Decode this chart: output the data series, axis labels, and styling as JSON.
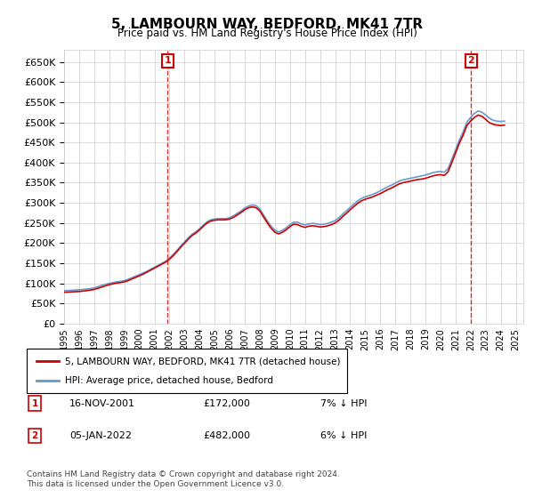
{
  "title": "5, LAMBOURN WAY, BEDFORD, MK41 7TR",
  "subtitle": "Price paid vs. HM Land Registry's House Price Index (HPI)",
  "ylabel_ticks": [
    0,
    50000,
    100000,
    150000,
    200000,
    250000,
    300000,
    350000,
    400000,
    450000,
    500000,
    550000,
    600000,
    650000
  ],
  "ylim": [
    0,
    680000
  ],
  "background_color": "#ffffff",
  "grid_color": "#cccccc",
  "hpi_color": "#6699cc",
  "price_color": "#cc0000",
  "marker1_date": "16-NOV-2001",
  "marker1_price": 172000,
  "marker1_hpi_pct": "7%",
  "marker2_date": "05-JAN-2022",
  "marker2_price": 482000,
  "marker2_hpi_pct": "6%",
  "legend_label_red": "5, LAMBOURN WAY, BEDFORD, MK41 7TR (detached house)",
  "legend_label_blue": "HPI: Average price, detached house, Bedford",
  "footer": "Contains HM Land Registry data © Crown copyright and database right 2024.\nThis data is licensed under the Open Government Licence v3.0.",
  "hpi_data": {
    "years": [
      1995.0,
      1995.25,
      1995.5,
      1995.75,
      1996.0,
      1996.25,
      1996.5,
      1996.75,
      1997.0,
      1997.25,
      1997.5,
      1997.75,
      1998.0,
      1998.25,
      1998.5,
      1998.75,
      1999.0,
      1999.25,
      1999.5,
      1999.75,
      2000.0,
      2000.25,
      2000.5,
      2000.75,
      2001.0,
      2001.25,
      2001.5,
      2001.75,
      2002.0,
      2002.25,
      2002.5,
      2002.75,
      2003.0,
      2003.25,
      2003.5,
      2003.75,
      2004.0,
      2004.25,
      2004.5,
      2004.75,
      2005.0,
      2005.25,
      2005.5,
      2005.75,
      2006.0,
      2006.25,
      2006.5,
      2006.75,
      2007.0,
      2007.25,
      2007.5,
      2007.75,
      2008.0,
      2008.25,
      2008.5,
      2008.75,
      2009.0,
      2009.25,
      2009.5,
      2009.75,
      2010.0,
      2010.25,
      2010.5,
      2010.75,
      2011.0,
      2011.25,
      2011.5,
      2011.75,
      2012.0,
      2012.25,
      2012.5,
      2012.75,
      2013.0,
      2013.25,
      2013.5,
      2013.75,
      2014.0,
      2014.25,
      2014.5,
      2014.75,
      2015.0,
      2015.25,
      2015.5,
      2015.75,
      2016.0,
      2016.25,
      2016.5,
      2016.75,
      2017.0,
      2017.25,
      2017.5,
      2017.75,
      2018.0,
      2018.25,
      2018.5,
      2018.75,
      2019.0,
      2019.25,
      2019.5,
      2019.75,
      2020.0,
      2020.25,
      2020.5,
      2020.75,
      2021.0,
      2021.25,
      2021.5,
      2021.75,
      2022.0,
      2022.25,
      2022.5,
      2022.75,
      2023.0,
      2023.25,
      2023.5,
      2023.75,
      2024.0,
      2024.25
    ],
    "values": [
      82000,
      82500,
      83000,
      83500,
      84000,
      85000,
      86000,
      87000,
      89000,
      92000,
      95000,
      98000,
      100000,
      102000,
      104000,
      105000,
      107000,
      110000,
      114000,
      118000,
      122000,
      126000,
      130000,
      135000,
      140000,
      145000,
      150000,
      155000,
      163000,
      172000,
      182000,
      193000,
      203000,
      213000,
      222000,
      228000,
      236000,
      245000,
      253000,
      258000,
      260000,
      261000,
      261000,
      261000,
      263000,
      268000,
      274000,
      280000,
      287000,
      292000,
      295000,
      293000,
      285000,
      270000,
      255000,
      242000,
      232000,
      228000,
      232000,
      238000,
      246000,
      252000,
      252000,
      248000,
      245000,
      248000,
      249000,
      248000,
      246000,
      247000,
      249000,
      252000,
      256000,
      263000,
      272000,
      280000,
      289000,
      297000,
      305000,
      311000,
      315000,
      318000,
      321000,
      325000,
      330000,
      335000,
      340000,
      344000,
      349000,
      354000,
      357000,
      359000,
      361000,
      363000,
      365000,
      367000,
      369000,
      372000,
      375000,
      377000,
      378000,
      376000,
      385000,
      408000,
      432000,
      456000,
      476000,
      500000,
      512000,
      522000,
      528000,
      525000,
      518000,
      510000,
      505000,
      503000,
      502000,
      503000
    ]
  },
  "price_data": {
    "years": [
      1995.0,
      1995.25,
      1995.5,
      1995.75,
      1996.0,
      1996.25,
      1996.5,
      1996.75,
      1997.0,
      1997.25,
      1997.5,
      1997.75,
      1998.0,
      1998.25,
      1998.5,
      1998.75,
      1999.0,
      1999.25,
      1999.5,
      1999.75,
      2000.0,
      2000.25,
      2000.5,
      2000.75,
      2001.0,
      2001.25,
      2001.5,
      2001.75,
      2002.0,
      2002.25,
      2002.5,
      2002.75,
      2003.0,
      2003.25,
      2003.5,
      2003.75,
      2004.0,
      2004.25,
      2004.5,
      2004.75,
      2005.0,
      2005.25,
      2005.5,
      2005.75,
      2006.0,
      2006.25,
      2006.5,
      2006.75,
      2007.0,
      2007.25,
      2007.5,
      2007.75,
      2008.0,
      2008.25,
      2008.5,
      2008.75,
      2009.0,
      2009.25,
      2009.5,
      2009.75,
      2010.0,
      2010.25,
      2010.5,
      2010.75,
      2011.0,
      2011.25,
      2011.5,
      2011.75,
      2012.0,
      2012.25,
      2012.5,
      2012.75,
      2013.0,
      2013.25,
      2013.5,
      2013.75,
      2014.0,
      2014.25,
      2014.5,
      2014.75,
      2015.0,
      2015.25,
      2015.5,
      2015.75,
      2016.0,
      2016.25,
      2016.5,
      2016.75,
      2017.0,
      2017.25,
      2017.5,
      2017.75,
      2018.0,
      2018.25,
      2018.5,
      2018.75,
      2019.0,
      2019.25,
      2019.5,
      2019.75,
      2020.0,
      2020.25,
      2020.5,
      2020.75,
      2021.0,
      2021.25,
      2021.5,
      2021.75,
      2022.0,
      2022.25,
      2022.5,
      2022.75,
      2023.0,
      2023.25,
      2023.5,
      2023.75,
      2024.0,
      2024.25
    ],
    "values": [
      78000,
      78500,
      79000,
      79500,
      80000,
      81000,
      82000,
      83500,
      85000,
      88000,
      91000,
      94000,
      97000,
      99000,
      101000,
      102000,
      104000,
      107000,
      111000,
      115000,
      119000,
      123000,
      128000,
      133000,
      138000,
      143000,
      148000,
      153000,
      160000,
      169000,
      179000,
      190000,
      200000,
      210000,
      219000,
      225000,
      233000,
      242000,
      250000,
      255000,
      257000,
      258000,
      258000,
      258000,
      260000,
      264000,
      270000,
      276000,
      283000,
      288000,
      290000,
      288000,
      280000,
      265000,
      250000,
      237000,
      227000,
      223000,
      227000,
      233000,
      241000,
      247000,
      246000,
      242000,
      239000,
      242000,
      243000,
      242000,
      240000,
      241000,
      243000,
      246000,
      250000,
      257000,
      266000,
      274000,
      283000,
      291000,
      299000,
      305000,
      309000,
      312000,
      315000,
      319000,
      323000,
      328000,
      333000,
      337000,
      342000,
      347000,
      350000,
      352000,
      354000,
      356000,
      358000,
      359000,
      361000,
      364000,
      367000,
      369000,
      370000,
      368000,
      377000,
      400000,
      424000,
      448000,
      468000,
      492000,
      503000,
      512000,
      518000,
      515000,
      507000,
      499000,
      495000,
      493000,
      492000,
      493000
    ]
  },
  "sale1_year": 2001.88,
  "sale1_price": 172000,
  "sale2_year": 2022.04,
  "sale2_price": 482000
}
